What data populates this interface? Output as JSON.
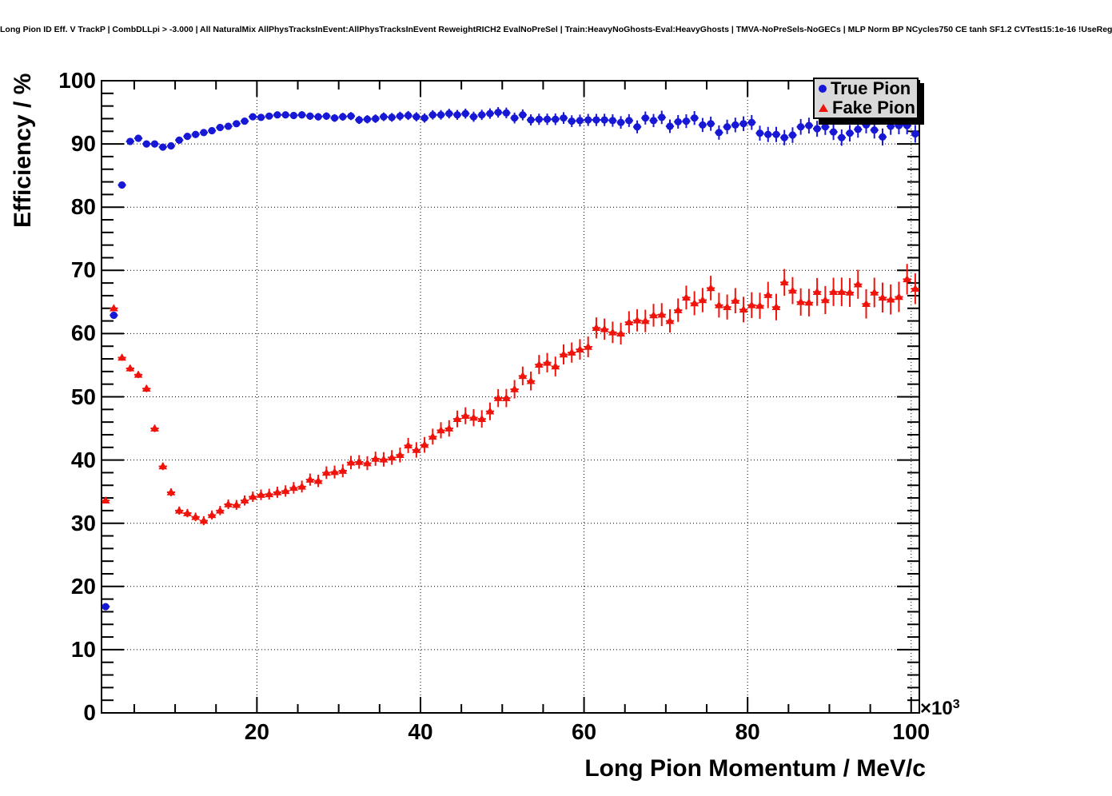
{
  "title": "Long Pion ID Eff. V TrackP | CombDLLpi > -3.000 | All NaturalMix AllPhysTracksInEvent:AllPhysTracksInEvent ReweightRICH2 EvalNoPreSel | Train:HeavyNoGhosts-Eval:HeavyGhosts | TMVA-NoPreSels-NoGECs | MLP Norm BP NCycles750 CE tanh SF1.2 CVTest15:1e-16 !UseReg",
  "legend": {
    "items": [
      {
        "label": "True Pion",
        "marker": "circle",
        "color": "#1717d6"
      },
      {
        "label": "Fake Pion",
        "marker": "triangle",
        "color": "#ef130b"
      }
    ]
  },
  "frame": {
    "background": "#ffffff",
    "border_color": "#000000",
    "grid_color": "#000000"
  },
  "chart_data": {
    "type": "scatter",
    "title": "Long Pion ID Eff. V TrackP | CombDLLpi > -3.000 | All NaturalMix AllPhysTracksInEvent:AllPhysTracksInEvent ReweightRICH2 EvalNoPreSel | Train:HeavyNoGhosts-Eval:HeavyGhosts | TMVA-NoPreSels-NoGECs | MLP Norm BP NCycles750 CE tanh SF1.2 CVTest15:1e-16 !UseReg",
    "xlabel": "Long Pion Momentum / MeV/c",
    "ylabel": "Efficiency / %",
    "x_exponent": {
      "mantissa": "×10",
      "power": "3"
    },
    "x_unit_scale": 1000,
    "xlim": [
      1,
      101
    ],
    "ylim": [
      0,
      100
    ],
    "x_ticks": [
      20,
      40,
      60,
      80,
      100
    ],
    "y_ticks": [
      0,
      10,
      20,
      30,
      40,
      50,
      60,
      70,
      80,
      90,
      100
    ],
    "x_minor_step": 5,
    "y_minor_step": 2,
    "grid": {
      "style": "dotted",
      "on_major_only": true
    },
    "legend_position": "top-right",
    "x": [
      1.5,
      2.5,
      3.5,
      4.5,
      5.5,
      6.5,
      7.5,
      8.5,
      9.5,
      10.5,
      11.5,
      12.5,
      13.5,
      14.5,
      15.5,
      16.5,
      17.5,
      18.5,
      19.5,
      20.5,
      21.5,
      22.5,
      23.5,
      24.5,
      25.5,
      26.5,
      27.5,
      28.5,
      29.5,
      30.5,
      31.5,
      32.5,
      33.5,
      34.5,
      35.5,
      36.5,
      37.5,
      38.5,
      39.5,
      40.5,
      41.5,
      42.5,
      43.5,
      44.5,
      45.5,
      46.5,
      47.5,
      48.5,
      49.5,
      50.5,
      51.5,
      52.5,
      53.5,
      54.5,
      55.5,
      56.5,
      57.5,
      58.5,
      59.5,
      60.5,
      61.5,
      62.5,
      63.5,
      64.5,
      65.5,
      66.5,
      67.5,
      68.5,
      69.5,
      70.5,
      71.5,
      72.5,
      73.5,
      74.5,
      75.5,
      76.5,
      77.5,
      78.5,
      79.5,
      80.5,
      81.5,
      82.5,
      83.5,
      84.5,
      85.5,
      86.5,
      87.5,
      88.5,
      89.5,
      90.5,
      91.5,
      92.5,
      93.5,
      94.5,
      95.5,
      96.5,
      97.5,
      98.5,
      99.5,
      100.5
    ],
    "series": [
      {
        "name": "True Pion",
        "marker": "circle",
        "color": "#1717d6",
        "values": [
          16.8,
          62.9,
          83.5,
          90.4,
          90.9,
          90.0,
          90.0,
          89.5,
          89.7,
          90.6,
          91.2,
          91.5,
          91.8,
          92.1,
          92.6,
          92.8,
          93.2,
          93.6,
          94.3,
          94.2,
          94.4,
          94.6,
          94.6,
          94.5,
          94.6,
          94.4,
          94.3,
          94.4,
          94.1,
          94.3,
          94.4,
          93.8,
          93.9,
          94.0,
          94.3,
          94.2,
          94.4,
          94.5,
          94.3,
          94.1,
          94.6,
          94.6,
          94.8,
          94.6,
          94.8,
          94.3,
          94.6,
          94.8,
          95.0,
          94.9,
          94.1,
          94.6,
          93.8,
          93.9,
          93.9,
          93.9,
          94.1,
          93.6,
          93.7,
          93.8,
          93.8,
          93.8,
          93.7,
          93.4,
          93.7,
          92.7,
          94.1,
          93.7,
          94.2,
          92.8,
          93.5,
          93.6,
          94.1,
          93.0,
          93.2,
          91.8,
          92.7,
          93.0,
          93.2,
          93.4,
          91.7,
          91.5,
          91.5,
          91.0,
          91.4,
          92.7,
          92.9,
          92.4,
          92.7,
          91.9,
          91.0,
          91.7,
          92.3,
          93.0,
          92.2,
          91.1,
          92.8,
          92.9,
          92.9,
          91.6
        ]
      },
      {
        "name": "Fake Pion",
        "marker": "triangle",
        "color": "#ef130b",
        "values": [
          33.6,
          64.0,
          56.2,
          54.5,
          53.5,
          51.3,
          45.0,
          39.0,
          34.9,
          32.0,
          31.6,
          31.0,
          30.4,
          31.3,
          32.0,
          33.0,
          32.9,
          33.6,
          34.2,
          34.5,
          34.6,
          34.9,
          35.1,
          35.6,
          35.8,
          36.9,
          36.7,
          38.0,
          38.1,
          38.3,
          39.6,
          39.7,
          39.5,
          40.2,
          40.1,
          40.4,
          40.8,
          42.3,
          41.6,
          42.4,
          43.7,
          44.7,
          45.0,
          46.5,
          47.0,
          46.7,
          46.5,
          47.7,
          49.8,
          49.8,
          51.2,
          53.3,
          52.5,
          55.1,
          55.4,
          54.8,
          56.7,
          57.0,
          57.5,
          57.9,
          60.9,
          60.7,
          60.2,
          60.0,
          61.8,
          62.1,
          62.0,
          62.9,
          63.0,
          62.0,
          63.7,
          65.7,
          64.8,
          65.3,
          67.2,
          64.5,
          64.2,
          65.2,
          63.8,
          64.5,
          64.4,
          66.1,
          64.2,
          68.1,
          66.8,
          65.0,
          64.9,
          66.6,
          65.3,
          66.6,
          66.6,
          66.5,
          67.8,
          64.7,
          66.5,
          65.7,
          65.4,
          65.8,
          68.6,
          67.1
        ]
      }
    ],
    "error_bars": {
      "x_half_width": 0.5,
      "y_model": [
        {
          "series": "True Pion",
          "base": 0.3,
          "per_unit": 0.011
        },
        {
          "series": "Fake Pion",
          "base": 0.45,
          "per_unit": 0.02
        }
      ]
    }
  }
}
